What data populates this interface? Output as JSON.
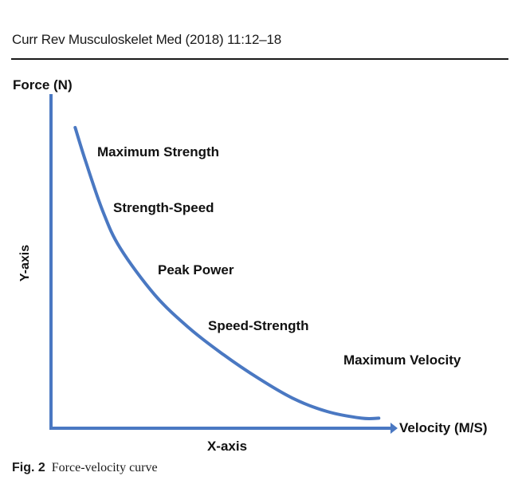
{
  "header": {
    "journal": "Curr Rev Musculoskelet Med (2018) 11:12–18"
  },
  "caption": {
    "figure_label": "Fig. 2",
    "text": "Force-velocity curve"
  },
  "colors": {
    "curve": "#4a78c2",
    "axis": "#4a78c2",
    "text": "#111111"
  },
  "chart_data": {
    "type": "line",
    "title": "",
    "xlabel": "X-axis",
    "ylabel": "Y-axis",
    "x_axis_end_label": "Velocity (M/S)",
    "y_axis_top_label": "Force (N)",
    "grid": false,
    "legend": "none",
    "series": [
      {
        "x": [
          0.07,
          0.1,
          0.15,
          0.2,
          0.3,
          0.4,
          0.5,
          0.6,
          0.7,
          0.8,
          0.9,
          0.95
        ],
        "y": [
          0.9,
          0.8,
          0.65,
          0.54,
          0.4,
          0.3,
          0.22,
          0.15,
          0.09,
          0.05,
          0.03,
          0.03
        ]
      }
    ],
    "annotations": [
      "Maximum Strength",
      "Strength-Speed",
      "Peak Power",
      "Speed-Strength",
      "Maximum Velocity"
    ]
  }
}
